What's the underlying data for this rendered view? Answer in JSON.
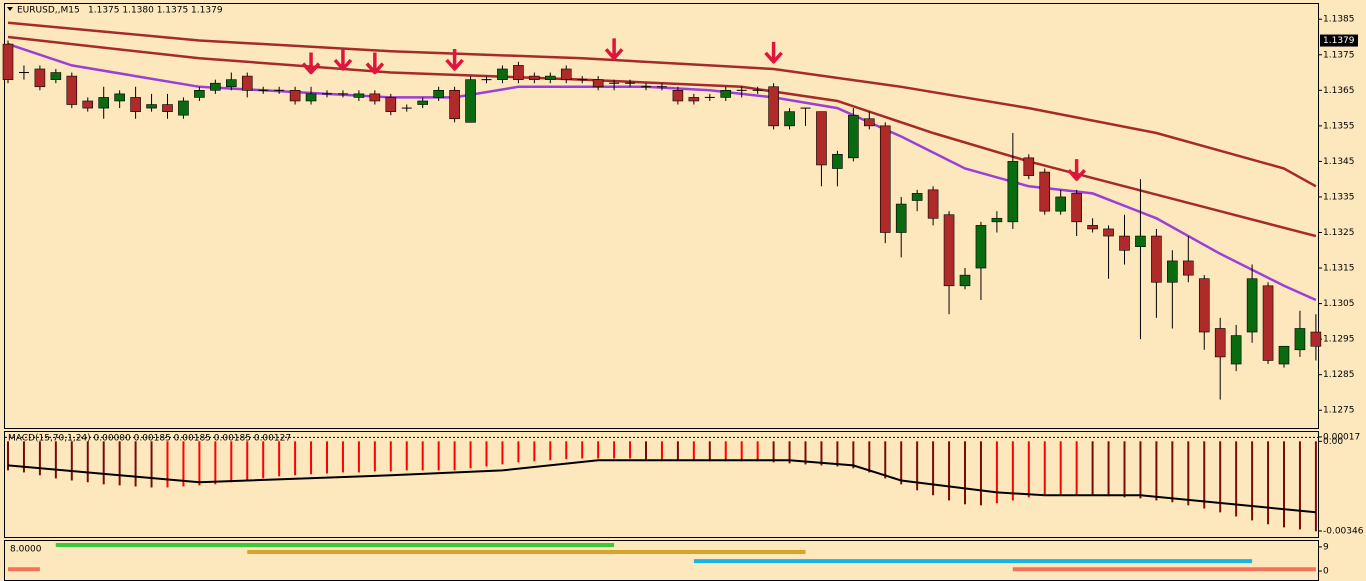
{
  "chart_data": [
    {
      "type": "candlestick",
      "title": "EURUSD,,M15",
      "quote": "1.1375 1.1380 1.1375 1.1379",
      "last": 1.1379,
      "ylim": [
        1.127,
        1.1389
      ],
      "yticks": [
        1.1385,
        1.1375,
        1.1365,
        1.1355,
        1.1345,
        1.1335,
        1.1325,
        1.1315,
        1.1305,
        1.1295,
        1.1285,
        1.1275
      ],
      "up_color": "#0a6a10",
      "down_color": "#b02a2a",
      "open": [
        1.1378,
        1.137,
        1.1371,
        1.1368,
        1.1369,
        1.1362,
        1.136,
        1.1362,
        1.1363,
        1.136,
        1.1361,
        1.1358,
        1.1363,
        1.1365,
        1.1366,
        1.1369,
        1.1365,
        1.1365,
        1.1365,
        1.1362,
        1.1364,
        1.1364,
        1.1363,
        1.1364,
        1.1363,
        1.136,
        1.1361,
        1.1363,
        1.1365,
        1.1356,
        1.1368,
        1.1368,
        1.1372,
        1.1369,
        1.1368,
        1.1371,
        1.1368,
        1.1368,
        1.1367,
        1.1367,
        1.1366,
        1.1366,
        1.1365,
        1.1363,
        1.1363,
        1.1363,
        1.1365,
        1.1365,
        1.1366,
        1.1355,
        1.136,
        1.1359,
        1.1343,
        1.1346,
        1.1357,
        1.1355,
        1.1325,
        1.1334,
        1.1337,
        1.133,
        1.131,
        1.1315,
        1.1328,
        1.1328,
        1.1346,
        1.1342,
        1.1331,
        1.1336,
        1.1327,
        1.1326,
        1.1324,
        1.1321,
        1.1324,
        1.1311,
        1.1317,
        1.1312,
        1.1298,
        1.1288,
        1.1297,
        1.131,
        1.1288,
        1.1292,
        1.1297
      ],
      "high": [
        1.1379,
        1.1372,
        1.1372,
        1.1371,
        1.137,
        1.1363,
        1.1366,
        1.1365,
        1.1366,
        1.1364,
        1.1364,
        1.1363,
        1.1366,
        1.1368,
        1.137,
        1.137,
        1.1366,
        1.1366,
        1.1366,
        1.1366,
        1.1365,
        1.1365,
        1.1365,
        1.1365,
        1.1364,
        1.1361,
        1.1363,
        1.1366,
        1.1366,
        1.1369,
        1.1369,
        1.1372,
        1.1373,
        1.137,
        1.137,
        1.1372,
        1.1369,
        1.1369,
        1.1368,
        1.1368,
        1.1367,
        1.1367,
        1.1366,
        1.1364,
        1.1364,
        1.1366,
        1.1366,
        1.1366,
        1.1367,
        1.136,
        1.136,
        1.1359,
        1.1348,
        1.136,
        1.1359,
        1.1356,
        1.1335,
        1.1337,
        1.1338,
        1.1331,
        1.1315,
        1.1328,
        1.1331,
        1.1353,
        1.1347,
        1.1343,
        1.1337,
        1.1337,
        1.1329,
        1.1327,
        1.133,
        1.134,
        1.1326,
        1.132,
        1.1324,
        1.1313,
        1.1301,
        1.1299,
        1.1316,
        1.1311,
        1.1293,
        1.1303,
        1.1302
      ],
      "low": [
        1.1367,
        1.1368,
        1.1365,
        1.1367,
        1.136,
        1.1359,
        1.1357,
        1.136,
        1.1357,
        1.1359,
        1.1357,
        1.1357,
        1.1362,
        1.1364,
        1.1365,
        1.1363,
        1.1364,
        1.1364,
        1.1361,
        1.1361,
        1.1363,
        1.1363,
        1.1362,
        1.1361,
        1.1358,
        1.1359,
        1.136,
        1.1362,
        1.1356,
        1.1356,
        1.1367,
        1.1367,
        1.1367,
        1.1367,
        1.1367,
        1.1367,
        1.1367,
        1.1365,
        1.1365,
        1.1366,
        1.1365,
        1.1365,
        1.1361,
        1.1361,
        1.1362,
        1.1362,
        1.1363,
        1.1364,
        1.1354,
        1.1354,
        1.1355,
        1.1338,
        1.1338,
        1.1345,
        1.1354,
        1.1322,
        1.1318,
        1.1331,
        1.1327,
        1.1302,
        1.1309,
        1.1306,
        1.1325,
        1.1326,
        1.134,
        1.133,
        1.133,
        1.1324,
        1.1325,
        1.1312,
        1.1316,
        1.1295,
        1.1301,
        1.1298,
        1.1311,
        1.1292,
        1.1278,
        1.1286,
        1.1294,
        1.1288,
        1.1287,
        1.129,
        1.1289
      ],
      "close": [
        1.1368,
        1.137,
        1.1366,
        1.137,
        1.1361,
        1.136,
        1.1363,
        1.1364,
        1.1359,
        1.1361,
        1.1359,
        1.1362,
        1.1365,
        1.1367,
        1.1368,
        1.1365,
        1.1365,
        1.1365,
        1.1362,
        1.1364,
        1.1364,
        1.1364,
        1.1364,
        1.1362,
        1.1359,
        1.136,
        1.1362,
        1.1365,
        1.1357,
        1.1368,
        1.1368,
        1.1371,
        1.1368,
        1.1368,
        1.1369,
        1.1368,
        1.1368,
        1.1366,
        1.1367,
        1.1367,
        1.1366,
        1.1366,
        1.1362,
        1.1362,
        1.1363,
        1.1365,
        1.1365,
        1.1365,
        1.1355,
        1.1359,
        1.136,
        1.1344,
        1.1347,
        1.1358,
        1.1355,
        1.1325,
        1.1333,
        1.1336,
        1.1329,
        1.131,
        1.1313,
        1.1327,
        1.1329,
        1.1345,
        1.1341,
        1.1331,
        1.1335,
        1.1328,
        1.1326,
        1.1324,
        1.132,
        1.1324,
        1.1311,
        1.1317,
        1.1313,
        1.1297,
        1.129,
        1.1296,
        1.1312,
        1.1289,
        1.1293,
        1.1298,
        1.1293
      ],
      "lines": [
        {
          "color": "#9b3fd6",
          "x": [
            0,
            4,
            8,
            12,
            16,
            20,
            24,
            28,
            32,
            36,
            40,
            44,
            48,
            52,
            56,
            60,
            64,
            68,
            72,
            76,
            80,
            82
          ],
          "values": [
            1.1378,
            1.1372,
            1.1369,
            1.1366,
            1.1365,
            1.1364,
            1.1363,
            1.1363,
            1.1366,
            1.1366,
            1.1366,
            1.1365,
            1.1363,
            1.136,
            1.1352,
            1.1343,
            1.1338,
            1.1336,
            1.1329,
            1.1319,
            1.131,
            1.1306
          ]
        },
        {
          "color": "#a52a2a",
          "x": [
            0,
            12,
            24,
            36,
            44,
            48,
            56,
            64,
            72,
            80,
            82
          ],
          "values": [
            1.1384,
            1.1379,
            1.1376,
            1.1374,
            1.1372,
            1.1371,
            1.1366,
            1.136,
            1.1353,
            1.1343,
            1.1338
          ]
        },
        {
          "color": "#a52a2a",
          "x": [
            0,
            12,
            24,
            36,
            46,
            52,
            58,
            64,
            70,
            76,
            82
          ],
          "values": [
            1.138,
            1.1374,
            1.137,
            1.1368,
            1.1366,
            1.1362,
            1.1353,
            1.1345,
            1.1338,
            1.1331,
            1.1324
          ]
        }
      ],
      "signals": {
        "color": "#e0153c",
        "x": [
          19,
          21,
          23,
          28,
          38,
          48,
          67
        ],
        "values": [
          1.137,
          1.1371,
          1.137,
          1.1371,
          1.1374,
          1.1373,
          1.134
        ]
      }
    },
    {
      "type": "histogram",
      "title": "MACD(15,70,1,24) 0.00000 0.00185 0.00185 0.00185 0.00127",
      "ylim": [
        -0.00373,
        0.00036
      ],
      "yticks": [
        {
          "value": 0,
          "label": "0.00"
        },
        0.00017,
        -0.00346
      ],
      "up_color": "#ff0000",
      "down_color": "#7a0a0a",
      "values": [
        -0.00112,
        -0.0012,
        -0.00131,
        -0.00143,
        -0.00151,
        -0.00158,
        -0.00166,
        -0.0017,
        -0.00174,
        -0.00178,
        -0.00178,
        -0.00174,
        -0.0017,
        -0.00166,
        -0.00158,
        -0.00151,
        -0.00143,
        -0.00135,
        -0.00131,
        -0.00127,
        -0.00124,
        -0.0012,
        -0.0012,
        -0.00116,
        -0.00116,
        -0.00112,
        -0.00112,
        -0.00112,
        -0.00112,
        -0.00104,
        -0.00097,
        -0.00089,
        -0.00081,
        -0.00077,
        -0.00073,
        -0.00069,
        -0.00066,
        -0.00066,
        -0.00066,
        -0.00066,
        -0.00069,
        -0.00069,
        -0.00073,
        -0.00073,
        -0.00077,
        -0.00077,
        -0.00077,
        -0.00077,
        -0.00081,
        -0.00085,
        -0.00089,
        -0.00093,
        -0.00097,
        -0.00104,
        -0.0012,
        -0.00143,
        -0.00166,
        -0.00189,
        -0.00208,
        -0.00228,
        -0.00243,
        -0.00247,
        -0.00239,
        -0.00228,
        -0.00216,
        -0.00208,
        -0.00205,
        -0.00205,
        -0.00208,
        -0.00212,
        -0.00216,
        -0.0022,
        -0.00228,
        -0.00235,
        -0.00247,
        -0.00259,
        -0.00274,
        -0.0029,
        -0.00305,
        -0.0032,
        -0.00332,
        -0.0034,
        -0.00347
      ],
      "signal": {
        "color": "#000000",
        "x": [
          0,
          12,
          24,
          31,
          37,
          49,
          53,
          56,
          62,
          65,
          71,
          82
        ],
        "values": [
          -0.00093,
          -0.00158,
          -0.00131,
          -0.00112,
          -0.00073,
          -0.00073,
          -0.00093,
          -0.00151,
          -0.00197,
          -0.00208,
          -0.00208,
          -0.00274
        ]
      }
    },
    {
      "type": "line",
      "title": "8.0000",
      "ylim": [
        -2.6,
        11.2
      ],
      "yticks": [
        9,
        0
      ],
      "series": [
        {
          "color": "#3cc83c",
          "x": [
            3,
            38
          ],
          "values": [
            9.7,
            9.7
          ]
        },
        {
          "color": "#d4a52a",
          "x": [
            15,
            50
          ],
          "values": [
            7.1,
            7.1
          ]
        },
        {
          "color": "#19b4e6",
          "x": [
            43,
            78
          ],
          "values": [
            3.7,
            3.7
          ]
        },
        {
          "color": "#f2735a",
          "x": [
            0,
            2
          ],
          "values": [
            0.7,
            0.7
          ]
        },
        {
          "color": "#f2735a",
          "x": [
            63,
            82
          ],
          "values": [
            0.7,
            0.7
          ]
        }
      ]
    }
  ]
}
